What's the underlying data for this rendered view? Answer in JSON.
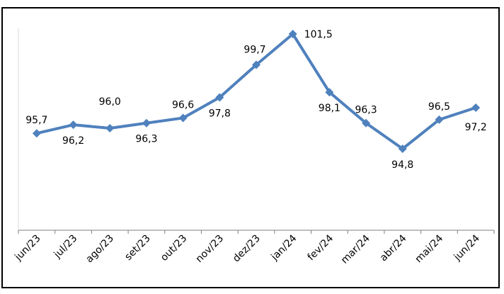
{
  "chart_data": {
    "type": "line",
    "title": "",
    "xlabel": "",
    "ylabel": "",
    "categories": [
      "jun/23",
      "jul/23",
      "ago/23",
      "set/23",
      "out/23",
      "nov/23",
      "dez/23",
      "jan/24",
      "fev/24",
      "mar/24",
      "abr/24",
      "mai/24",
      "jun/24"
    ],
    "series": [
      {
        "values": [
          95.7,
          96.2,
          96.0,
          96.3,
          96.6,
          97.8,
          99.7,
          101.5,
          98.1,
          96.3,
          94.8,
          96.5,
          97.2
        ],
        "labels": [
          "95,7",
          "96,2",
          "96,0",
          "96,3",
          "96,6",
          "97,8",
          "99,7",
          "101,5",
          "98,1",
          "96,3",
          "94,8",
          "96,5",
          "97,2"
        ],
        "color": "#4F81BD",
        "marker": "diamond"
      }
    ],
    "y_axis_visible": false,
    "grid": false,
    "legend": "none"
  }
}
